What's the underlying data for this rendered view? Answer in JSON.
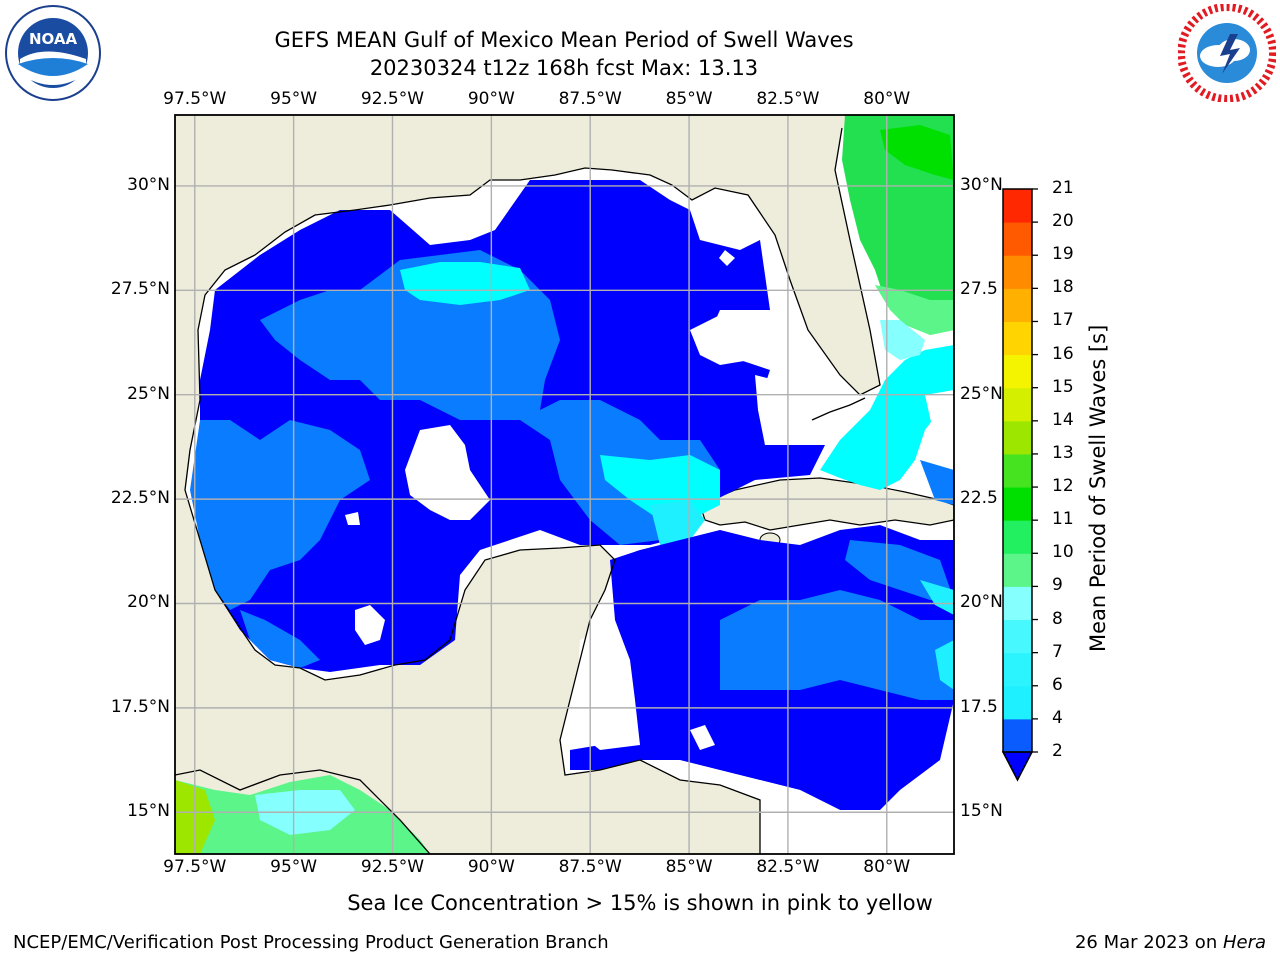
{
  "header": {
    "title_line1": "GEFS MEAN Gulf of Mexico Mean Period of Swell Waves",
    "title_line2": "20230324 t12z 168h fcst   Max: 13.13"
  },
  "logos": {
    "left": {
      "name": "noaa-logo",
      "text": "NOAA",
      "ring_text": "NATIONAL OCEANIC AND ATMOSPHERIC ADMINISTRATION · U.S. DEPARTMENT OF COMMERCE"
    },
    "right": {
      "name": "nws-logo",
      "ring_text": "NATIONAL WEATHER SERVICE"
    }
  },
  "map": {
    "lon_labels": [
      "97.5°W",
      "95°W",
      "92.5°W",
      "90°W",
      "87.5°W",
      "85°W",
      "82.5°W",
      "80°W"
    ],
    "lon_values": [
      -97.5,
      -95,
      -92.5,
      -90,
      -87.5,
      -85,
      -82.5,
      -80
    ],
    "lat_labels_left": [
      "30°N",
      "27.5°N",
      "25°N",
      "22.5°N",
      "20°N",
      "17.5°N",
      "15°N"
    ],
    "lat_labels_right": [
      "30°N",
      "27.5",
      "25°N",
      "22.5",
      "20°N",
      "17.5",
      "15°N"
    ],
    "lat_values": [
      30,
      27.5,
      25,
      22.5,
      20,
      17.5,
      15
    ],
    "lon_range": [
      -98,
      -78.3
    ],
    "lat_range": [
      14,
      31.7
    ],
    "land_color": "#eeeddc",
    "grid_color": "#b0b0b0"
  },
  "colorbar": {
    "title": "Mean Period of Swell Waves [s]",
    "levels": [
      "2",
      "4",
      "6",
      "7",
      "8",
      "9",
      "10",
      "11",
      "12",
      "13",
      "14",
      "15",
      "16",
      "17",
      "18",
      "19",
      "20",
      "21"
    ],
    "colors": [
      "#0a5cff",
      "#1ef0ff",
      "#2cf4ff",
      "#48f8ff",
      "#86ffff",
      "#5cf58a",
      "#22f060",
      "#00e000",
      "#45e320",
      "#9de600",
      "#d4f000",
      "#f4f400",
      "#ffd400",
      "#ffb000",
      "#ff8c00",
      "#ff5a00",
      "#ff2800"
    ],
    "under_color": "#0000ff"
  },
  "chart_data": {
    "type": "heatmap",
    "title": "GEFS MEAN Gulf of Mexico Mean Period of Swell Waves",
    "subtitle": "20230324 t12z 168h fcst   Max: 13.13",
    "colorbar_label": "Mean Period of Swell Waves [s]",
    "max_value": 13.13,
    "xlim": [
      -98,
      -78.3
    ],
    "ylim": [
      14,
      31.7
    ]
  },
  "notes": {
    "ice_note": "Sea Ice Concentration > 15% is shown in pink to yellow"
  },
  "footer": {
    "left": "NCEP/EMC/Verification Post Processing Product Generation Branch",
    "right_date": "26 Mar 2023 on ",
    "right_machine": "Hera"
  }
}
